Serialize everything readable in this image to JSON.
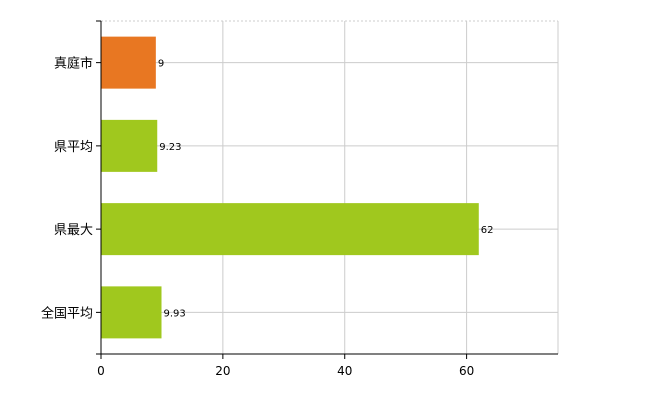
{
  "chart_data": {
    "type": "bar",
    "orientation": "horizontal",
    "title": "",
    "xlabel": "",
    "ylabel": "",
    "categories": [
      "真庭市",
      "県平均",
      "県最大",
      "全国平均"
    ],
    "values": [
      9,
      9.23,
      62,
      9.93
    ],
    "data_labels": [
      "9",
      "9.23",
      "62",
      "9.93"
    ],
    "bar_colors": [
      "#e87722",
      "#a0c81e",
      "#a0c81e",
      "#a0c81e"
    ],
    "xlim": [
      0,
      75
    ],
    "x_ticks": [
      0,
      20,
      40,
      60
    ],
    "x_tick_labels": [
      "0",
      "20",
      "40",
      "60"
    ],
    "grid": true,
    "grid_color": "#cccccc",
    "legend": "none"
  }
}
